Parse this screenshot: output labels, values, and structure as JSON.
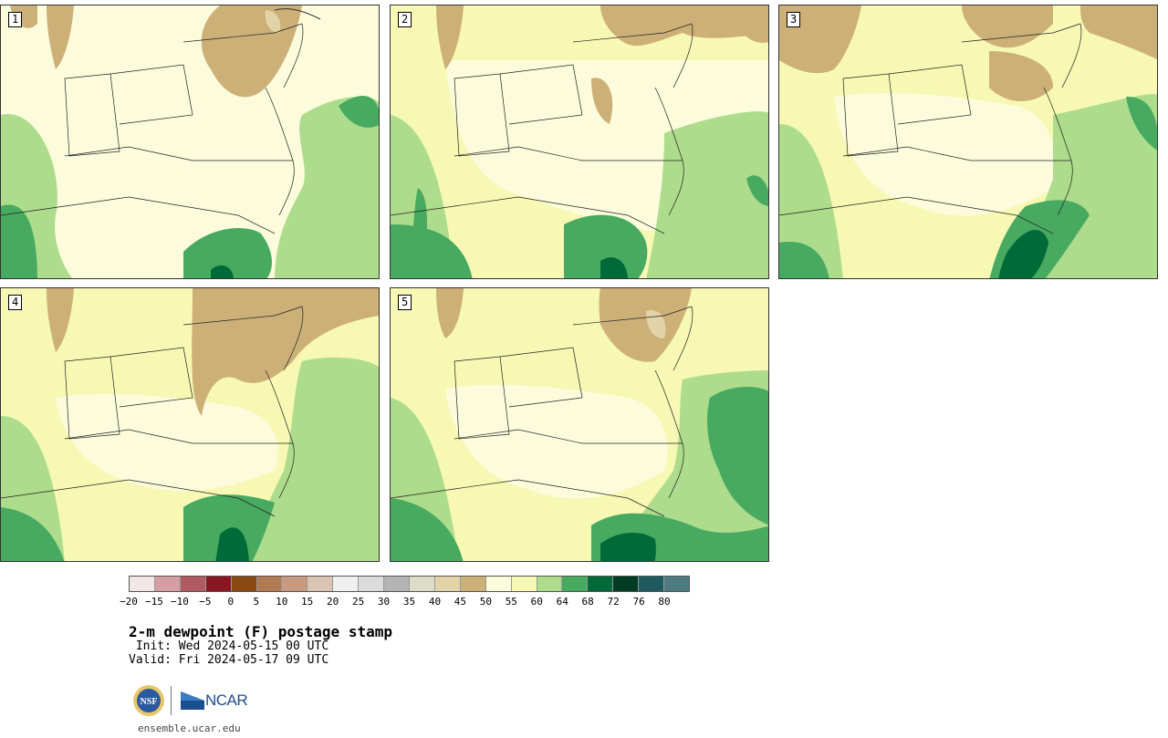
{
  "panels": [
    {
      "label": "1"
    },
    {
      "label": "2"
    },
    {
      "label": "3"
    },
    {
      "label": "4"
    },
    {
      "label": "5"
    }
  ],
  "colorbar": {
    "colors": [
      "#f3e6e6",
      "#d59da4",
      "#b05a62",
      "#8a1622",
      "#8a4a12",
      "#b07a52",
      "#c89b80",
      "#dcc4b4",
      "#f0f0f0",
      "#dcdcdc",
      "#b4b4b4",
      "#dcdcc8",
      "#e3d3a8",
      "#cdb078",
      "#fcfcdc",
      "#f6f8b4",
      "#acdc8c",
      "#48aa60",
      "#006a38",
      "#003c22",
      "#1e5a5e",
      "#4e7a80"
    ],
    "ticks": [
      "−20",
      "−15",
      "−10",
      "−5",
      "0",
      "5",
      "10",
      "15",
      "20",
      "25",
      "30",
      "35",
      "40",
      "45",
      "50",
      "55",
      "60",
      "64",
      "68",
      "72",
      "76",
      "80"
    ]
  },
  "title": "2-m dewpoint (F) postage stamp",
  "init": " Init: Wed 2024-05-15 00 UTC",
  "valid": "Valid: Fri 2024-05-17 09 UTC",
  "logos": {
    "nsf": "NSF",
    "ncar": "NCAR"
  },
  "footer_url": "ensemble.ucar.edu",
  "colors": {
    "land_tan": "#cdb078",
    "pale_yellow": "#fcfcdc",
    "light_yellow": "#f6f8b4",
    "light_green": "#acdc8c",
    "mid_green": "#48aa60",
    "dark_green": "#006a38"
  }
}
